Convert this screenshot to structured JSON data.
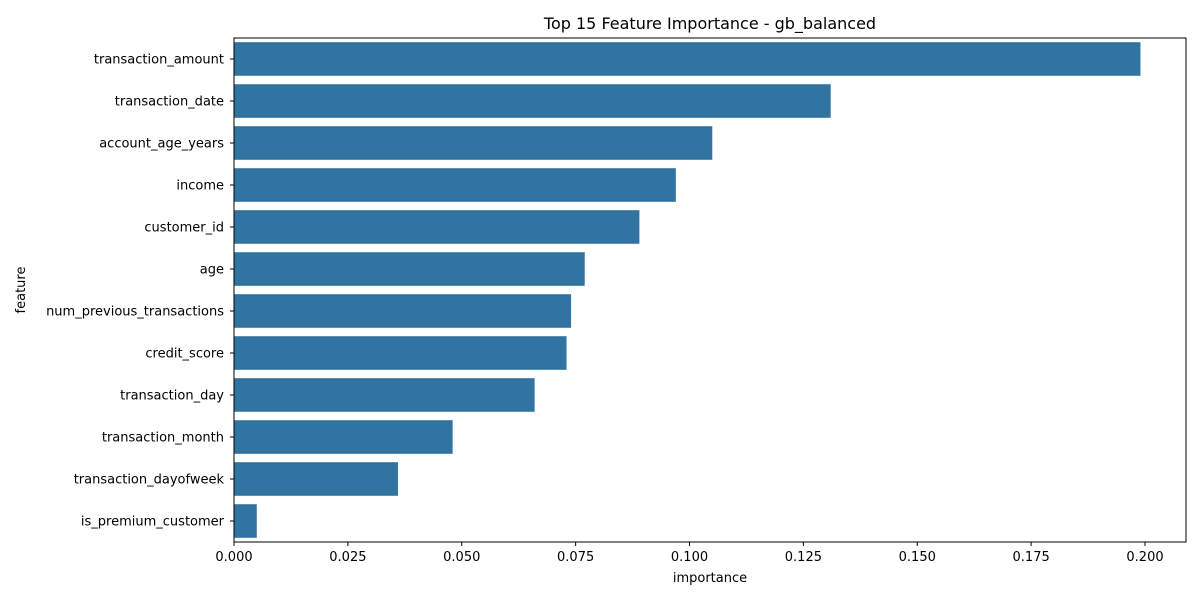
{
  "chart_data": {
    "type": "bar",
    "orientation": "horizontal",
    "title": "Top 15 Feature Importance - gb_balanced",
    "xlabel": "importance",
    "ylabel": "feature",
    "xlim": [
      0.0,
      0.209
    ],
    "xticks": [
      "0.000",
      "0.025",
      "0.050",
      "0.075",
      "0.100",
      "0.125",
      "0.150",
      "0.175",
      "0.200"
    ],
    "bar_color": "#3274a1",
    "grid": false,
    "legend": "none",
    "categories": [
      "transaction_amount",
      "transaction_date",
      "account_age_years",
      "income",
      "customer_id",
      "age",
      "num_previous_transactions",
      "credit_score",
      "transaction_day",
      "transaction_month",
      "transaction_dayofweek",
      "is_premium_customer"
    ],
    "values": [
      0.199,
      0.131,
      0.105,
      0.097,
      0.089,
      0.077,
      0.074,
      0.073,
      0.066,
      0.048,
      0.036,
      0.005
    ]
  }
}
